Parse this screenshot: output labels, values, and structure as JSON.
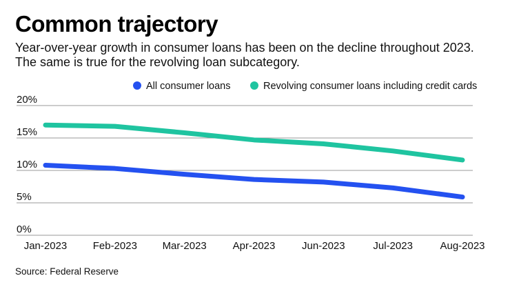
{
  "title": "Common trajectory",
  "subtitle": "Year-over-year growth in consumer loans has been on the decline throughout 2023. The same is true for the revolving loan subcategory.",
  "source": "Source: Federal Reserve",
  "chart_data": {
    "type": "line",
    "title": "Common trajectory",
    "xlabel": "",
    "ylabel": "",
    "categories": [
      "Jan-2023",
      "Feb-2023",
      "Mar-2023",
      "Apr-2023",
      "Jun-2023",
      "Jul-2023",
      "Aug-2023"
    ],
    "ylim": [
      0,
      20
    ],
    "yticks": [
      0,
      5,
      10,
      15,
      20
    ],
    "ytick_labels": [
      "0%",
      "5%",
      "10%",
      "15%",
      "20%"
    ],
    "grid": true,
    "legend_position": "top-right",
    "series": [
      {
        "name": "All consumer loans",
        "color": "#2451f0",
        "values": [
          10.8,
          10.3,
          9.4,
          8.6,
          8.2,
          7.3,
          5.9
        ]
      },
      {
        "name": "Revolving consumer loans including credit cards",
        "color": "#1fc4a0",
        "values": [
          17.0,
          16.8,
          15.8,
          14.7,
          14.1,
          13.0,
          11.6
        ]
      }
    ]
  }
}
